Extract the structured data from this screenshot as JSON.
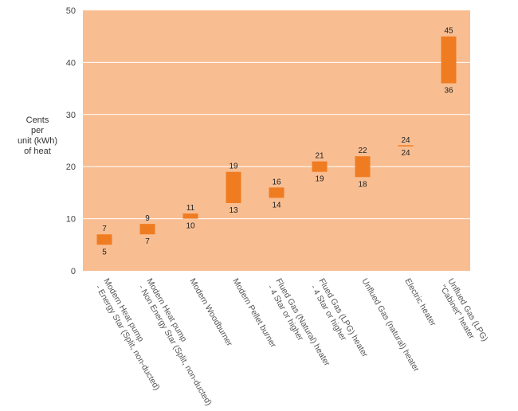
{
  "chart_data": {
    "type": "bar",
    "chart_style": "floating range bars",
    "title": "",
    "ylabel": [
      "Cents",
      "per",
      "unit (kWh)",
      "of heat"
    ],
    "xlabel": "",
    "ylim": [
      0,
      50
    ],
    "yticks": [
      0,
      10,
      20,
      30,
      40,
      50
    ],
    "grid": true,
    "legend": "none",
    "colors": {
      "plot_background": "#f8be92",
      "bar": "#f07c22",
      "gridline": "#ffffff",
      "text": "#333333"
    },
    "categories": [
      [
        "Modern Heat pump",
        "- Energy Star (Split, non-ducted)"
      ],
      [
        "Modern Heat pump",
        "- Non Energy Star (Split, non-ducted)"
      ],
      [
        "Modern Woodburner"
      ],
      [
        "Modern Pellet burner"
      ],
      [
        "Flued Gas (Natural) heater",
        "- 4 Star or higher"
      ],
      [
        "Flued Gas (LPG) heater",
        "- 4 Star or higher"
      ],
      [
        "Unflued Gas (natural) heater"
      ],
      [
        "Electric heater"
      ],
      [
        "Unflued Gas (LPG)",
        "\"Cabinet\" heater"
      ]
    ],
    "series": [
      {
        "low": [
          5,
          7,
          10,
          13,
          14,
          19,
          18,
          24,
          36
        ],
        "high": [
          7,
          9,
          11,
          19,
          16,
          21,
          22,
          24,
          45
        ]
      }
    ]
  }
}
